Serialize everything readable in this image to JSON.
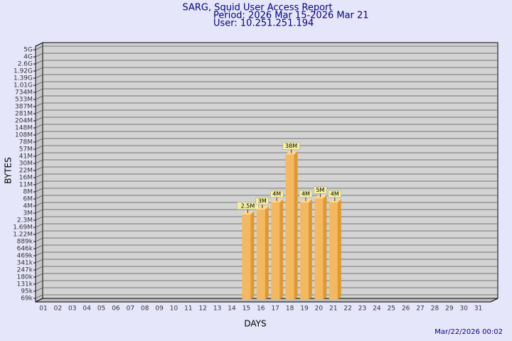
{
  "chart_data": {
    "type": "bar3d",
    "title": "SARG, Squid User Access Report",
    "subtitle": "Period: 2026 Mar 15-2026 Mar 21",
    "user": "User: 10.251.251.194",
    "x_label": "DAYS",
    "y_label": "BYTES",
    "footer": "Mar/22/2026 00:02",
    "categories": [
      "01",
      "02",
      "03",
      "04",
      "05",
      "06",
      "07",
      "08",
      "09",
      "10",
      "11",
      "12",
      "13",
      "14",
      "15",
      "16",
      "17",
      "18",
      "19",
      "20",
      "21",
      "22",
      "23",
      "24",
      "25",
      "26",
      "27",
      "28",
      "29",
      "30",
      "31"
    ],
    "values": [
      null,
      null,
      null,
      null,
      null,
      null,
      null,
      null,
      null,
      null,
      null,
      null,
      null,
      null,
      2500000,
      3000000,
      4000000,
      38000000,
      4000000,
      5000000,
      4000000,
      null,
      null,
      null,
      null,
      null,
      null,
      null,
      null,
      null,
      null
    ],
    "value_labels": [
      null,
      null,
      null,
      null,
      null,
      null,
      null,
      null,
      null,
      null,
      null,
      null,
      null,
      null,
      "2.5M",
      "3M",
      "4M",
      "38M",
      "4M",
      "5M",
      "4M",
      null,
      null,
      null,
      null,
      null,
      null,
      null,
      null,
      null,
      null
    ],
    "color": "#f4b860",
    "ylim": [
      50000,
      5000000000
    ],
    "log_scale": true,
    "grid": true,
    "yticks": [
      {
        "value": 69000,
        "label": "69k"
      },
      {
        "value": 95000,
        "label": "95k"
      },
      {
        "value": 131000,
        "label": "131k"
      },
      {
        "value": 180000,
        "label": "180k"
      },
      {
        "value": 247000,
        "label": "247k"
      },
      {
        "value": 341000,
        "label": "341k"
      },
      {
        "value": 469000,
        "label": "469k"
      },
      {
        "value": 646000,
        "label": "646k"
      },
      {
        "value": 889000,
        "label": "889k"
      },
      {
        "value": 1220000,
        "label": "1.22M"
      },
      {
        "value": 1690000,
        "label": "1.69M"
      },
      {
        "value": 2300000,
        "label": "2.3M"
      },
      {
        "value": 3000000,
        "label": "3M"
      },
      {
        "value": 4000000,
        "label": "4M"
      },
      {
        "value": 6000000,
        "label": "6M"
      },
      {
        "value": 8000000,
        "label": "8M"
      },
      {
        "value": 11000000,
        "label": "11M"
      },
      {
        "value": 16000000,
        "label": "16M"
      },
      {
        "value": 22000000,
        "label": "22M"
      },
      {
        "value": 30000000,
        "label": "30M"
      },
      {
        "value": 41000000,
        "label": "41M"
      },
      {
        "value": 57000000,
        "label": "57M"
      },
      {
        "value": 78000000,
        "label": "78M"
      },
      {
        "value": 108000000,
        "label": "108M"
      },
      {
        "value": 148000000,
        "label": "148M"
      },
      {
        "value": 204000000,
        "label": "204M"
      },
      {
        "value": 281000000,
        "label": "281M"
      },
      {
        "value": 387000000,
        "label": "387M"
      },
      {
        "value": 533000000,
        "label": "533M"
      },
      {
        "value": 734000000,
        "label": "734M"
      },
      {
        "value": 1010000000,
        "label": "1.01G"
      },
      {
        "value": 1390000000,
        "label": "1.39G"
      },
      {
        "value": 1920000000,
        "label": "1.92G"
      },
      {
        "value": 2600000000,
        "label": "2.6G"
      },
      {
        "value": 4000000000,
        "label": "4G"
      },
      {
        "value": 5000000000,
        "label": "5G"
      }
    ]
  }
}
